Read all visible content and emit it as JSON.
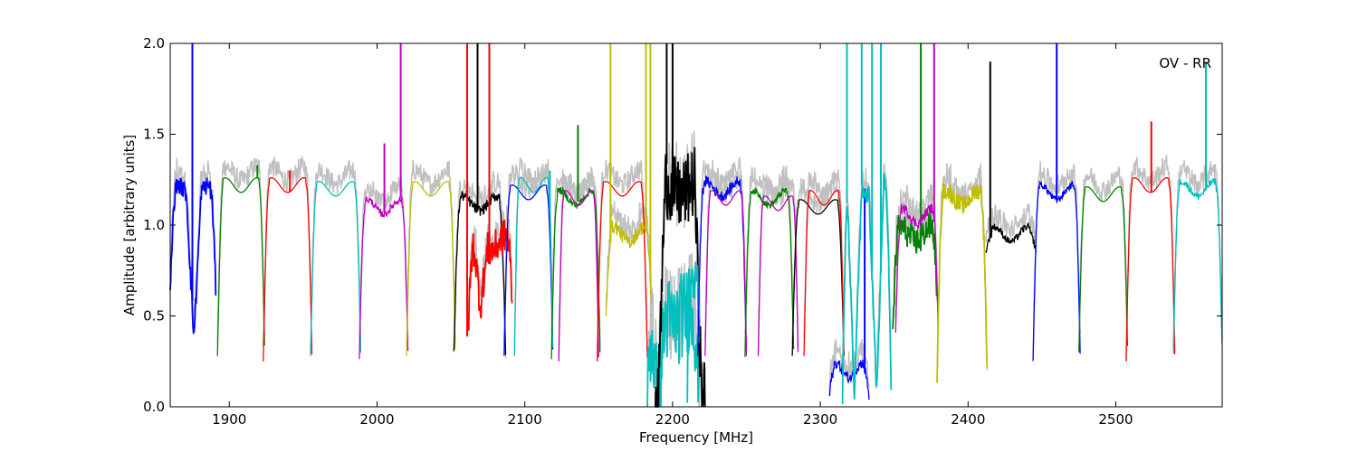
{
  "chart_data": {
    "type": "line",
    "title": "",
    "annotation": "OV - RR",
    "xlabel": "Frequency [MHz]",
    "ylabel": "Amplitude [arbitrary units]",
    "xlim": [
      1860,
      2572
    ],
    "ylim": [
      0,
      2.0
    ],
    "grid": false,
    "legend": "none",
    "xticks": [
      1900,
      2000,
      2100,
      2200,
      2300,
      2400,
      2500
    ],
    "xtick_labels": [
      "1900",
      "2000",
      "2100",
      "2200",
      "2300",
      "2400",
      "2500"
    ],
    "yticks": [
      0,
      0.5,
      1.0,
      1.5,
      2.0
    ],
    "ytick_labels": [
      "0.0",
      "0.5",
      "1.0",
      "1.5",
      "2.0"
    ],
    "background_trace_color": "#c0c0c0",
    "series": [
      {
        "color": "#0000ff",
        "x0": 1860,
        "x1": 1891,
        "top": 1.18,
        "edge": 0.6,
        "spikes": [
          [
            1875,
            2.0
          ]
        ],
        "dips": [
          [
            1876,
            0.38
          ]
        ],
        "noise": 0.05
      },
      {
        "color": "#008000",
        "x0": 1892,
        "x1": 1924,
        "top": 1.22,
        "edge": 0.28,
        "spikes": [
          [
            1919,
            1.33
          ]
        ],
        "dips": [],
        "noise": 0.0
      },
      {
        "color": "#ff0000",
        "x0": 1923,
        "x1": 1956,
        "top": 1.22,
        "edge": 0.25,
        "spikes": [
          [
            1941,
            1.3
          ]
        ],
        "dips": [],
        "noise": 0.0
      },
      {
        "color": "#00bfbf",
        "x0": 1955,
        "x1": 1989,
        "top": 1.2,
        "edge": 0.28,
        "spikes": [],
        "dips": [],
        "noise": 0.0
      },
      {
        "color": "#bf00bf",
        "x0": 1988,
        "x1": 2021,
        "top": 1.1,
        "edge": 0.28,
        "spikes": [
          [
            2005,
            1.45
          ],
          [
            2016,
            2.0
          ]
        ],
        "dips": [],
        "noise": 0.02
      },
      {
        "color": "#bfbf00",
        "x0": 2020,
        "x1": 2053,
        "top": 1.2,
        "edge": 0.28,
        "spikes": [],
        "dips": [],
        "noise": 0.0
      },
      {
        "color": "#000000",
        "x0": 2052,
        "x1": 2087,
        "top": 1.12,
        "edge": 0.28,
        "spikes": [
          [
            2068,
            2.0
          ]
        ],
        "dips": [],
        "noise": 0.03
      },
      {
        "color": "#ff0000",
        "x0": 2062,
        "x1": 2092,
        "top": 0.9,
        "edge": 0.5,
        "spikes": [
          [
            2061,
            2.0
          ],
          [
            2076,
            2.0
          ]
        ],
        "dips": [
          [
            2070,
            0.55
          ]
        ],
        "noise": 0.1
      },
      {
        "color": "#0000ff",
        "x0": 2086,
        "x1": 2119,
        "top": 1.18,
        "edge": 0.28,
        "spikes": [],
        "dips": [],
        "noise": 0.0
      },
      {
        "color": "#00bfbf",
        "x0": 2093,
        "x1": 2119,
        "top": 1.22,
        "edge": 0.28,
        "spikes": [
          [
            2117,
            1.3
          ]
        ],
        "dips": [],
        "noise": 0.0
      },
      {
        "color": "#008000",
        "x0": 2118,
        "x1": 2151,
        "top": 1.15,
        "edge": 0.28,
        "spikes": [
          [
            2136,
            1.55
          ]
        ],
        "dips": [],
        "noise": 0.02
      },
      {
        "color": "#bf00bf",
        "x0": 2123,
        "x1": 2150,
        "top": 1.15,
        "edge": 0.25,
        "spikes": [],
        "dips": [],
        "noise": 0.0
      },
      {
        "color": "#ff0000",
        "x0": 2149,
        "x1": 2183,
        "top": 1.2,
        "edge": 0.25,
        "spikes": [],
        "dips": [],
        "noise": 0.0
      },
      {
        "color": "#bfbf00",
        "x0": 2155,
        "x1": 2186,
        "top": 0.95,
        "edge": 0.5,
        "spikes": [
          [
            2158,
            2.0
          ],
          [
            2182,
            2.0
          ],
          [
            2185,
            2.0
          ]
        ],
        "dips": [],
        "noise": 0.04
      },
      {
        "color": "#00bfbf",
        "x0": 2183,
        "x1": 2218,
        "top": 0.5,
        "edge": 0.0,
        "spikes": [],
        "dips": [
          [
            2190,
            0.0
          ]
        ],
        "noise": 0.25
      },
      {
        "color": "#000000",
        "x0": 2188,
        "x1": 2222,
        "top": 1.2,
        "edge": 0.0,
        "spikes": [
          [
            2196,
            2.0
          ],
          [
            2200,
            2.0
          ]
        ],
        "dips": [
          [
            2190,
            0.0
          ],
          [
            2220,
            0.0
          ]
        ],
        "noise": 0.2
      },
      {
        "color": "#00bfbf",
        "x0": 2210,
        "x1": 2218,
        "top": 0.7,
        "edge": 0.05,
        "spikes": [],
        "dips": [],
        "noise": 0.1
      },
      {
        "color": "#0000ff",
        "x0": 2217,
        "x1": 2250,
        "top": 1.2,
        "edge": 0.28,
        "spikes": [],
        "dips": [],
        "noise": 0.03
      },
      {
        "color": "#bf00bf",
        "x0": 2222,
        "x1": 2250,
        "top": 1.15,
        "edge": 0.28,
        "spikes": [],
        "dips": [],
        "noise": 0.0
      },
      {
        "color": "#008000",
        "x0": 2249,
        "x1": 2282,
        "top": 1.15,
        "edge": 0.28,
        "spikes": [],
        "dips": [],
        "noise": 0.02
      },
      {
        "color": "#bf00bf",
        "x0": 2258,
        "x1": 2285,
        "top": 1.12,
        "edge": 0.28,
        "spikes": [],
        "dips": [],
        "noise": 0.0
      },
      {
        "color": "#000000",
        "x0": 2281,
        "x1": 2316,
        "top": 1.1,
        "edge": 0.28,
        "spikes": [],
        "dips": [],
        "noise": 0.0
      },
      {
        "color": "#ff0000",
        "x0": 2289,
        "x1": 2316,
        "top": 1.15,
        "edge": 0.28,
        "spikes": [],
        "dips": [],
        "noise": 0.0
      },
      {
        "color": "#0000ff",
        "x0": 2306,
        "x1": 2333,
        "top": 0.2,
        "edge": 0.05,
        "spikes": [
          [
            2330,
            1.2
          ]
        ],
        "dips": [],
        "noise": 0.03
      },
      {
        "color": "#00bfbf",
        "x0": 2315,
        "x1": 2348,
        "top": 1.2,
        "edge": 0.05,
        "spikes": [
          [
            2318,
            2.0
          ],
          [
            2328,
            2.0
          ],
          [
            2335,
            2.0
          ],
          [
            2341,
            2.0
          ]
        ],
        "dips": [
          [
            2323,
            0.05
          ],
          [
            2338,
            0.05
          ]
        ],
        "noise": 0.05
      },
      {
        "color": "#008000",
        "x0": 2349,
        "x1": 2380,
        "top": 0.95,
        "edge": 0.38,
        "spikes": [
          [
            2368,
            2.0
          ]
        ],
        "dips": [],
        "noise": 0.08
      },
      {
        "color": "#bf00bf",
        "x0": 2351,
        "x1": 2380,
        "top": 1.05,
        "edge": 0.4,
        "spikes": [
          [
            2377,
            2.0
          ]
        ],
        "dips": [],
        "noise": 0.03
      },
      {
        "color": "#bfbf00",
        "x0": 2379,
        "x1": 2413,
        "top": 1.15,
        "edge": 0.17,
        "spikes": [],
        "dips": [],
        "noise": 0.05
      },
      {
        "color": "#000000",
        "x0": 2412,
        "x1": 2446,
        "top": 0.95,
        "edge": 0.85,
        "spikes": [
          [
            2415,
            1.9
          ]
        ],
        "dips": [],
        "noise": 0.02
      },
      {
        "color": "#0000ff",
        "x0": 2444,
        "x1": 2476,
        "top": 1.18,
        "edge": 0.25,
        "spikes": [
          [
            2460,
            2.0
          ]
        ],
        "dips": [],
        "noise": 0.02
      },
      {
        "color": "#008000",
        "x0": 2475,
        "x1": 2508,
        "top": 1.17,
        "edge": 0.3,
        "spikes": [],
        "dips": [],
        "noise": 0.0
      },
      {
        "color": "#ff0000",
        "x0": 2507,
        "x1": 2540,
        "top": 1.22,
        "edge": 0.25,
        "spikes": [
          [
            2524,
            1.57
          ]
        ],
        "dips": [],
        "noise": 0.0
      },
      {
        "color": "#00bfbf",
        "x0": 2539,
        "x1": 2572,
        "top": 1.2,
        "edge": 0.3,
        "spikes": [
          [
            2561,
            1.9
          ]
        ],
        "dips": [],
        "noise": 0.02
      }
    ]
  }
}
